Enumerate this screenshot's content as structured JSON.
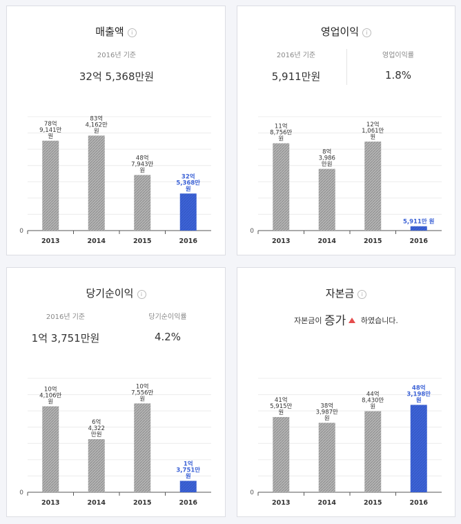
{
  "panels": [
    {
      "title": "매출액",
      "summary": {
        "cols": [
          {
            "caption": "2016년 기준",
            "value": "32억 5,368만원"
          }
        ]
      },
      "chart_data": {
        "type": "bar",
        "categories": [
          "2013",
          "2014",
          "2015",
          "2016"
        ],
        "values": [
          78.91,
          83.42,
          48.79,
          32.54
        ],
        "labels": [
          "78억 9,141만 원",
          "83억 4,162만 원",
          "48억 7,943만 원",
          "32억 5,368만 원"
        ],
        "yaxis_label": "0",
        "ylim": [
          0,
          100
        ],
        "highlight_index": 3
      }
    },
    {
      "title": "영업이익",
      "summary": {
        "cols": [
          {
            "caption": "2016년 기준",
            "value": "5,911만원"
          },
          {
            "caption": "영업이익률",
            "value": "1.8%"
          }
        ]
      },
      "chart_data": {
        "type": "bar",
        "categories": [
          "2013",
          "2014",
          "2015",
          "2016"
        ],
        "values": [
          11.88,
          8.4,
          12.11,
          0.59
        ],
        "labels": [
          "11억 8,756만 원",
          "8억 3,986 만원",
          "12억 1,061만 원",
          "5,911만 원"
        ],
        "yaxis_label": "0",
        "ylim": [
          0,
          15.5
        ],
        "highlight_index": 3
      }
    },
    {
      "title": "당기순이익",
      "summary": {
        "cols": [
          {
            "caption": "2016년 기준",
            "value": "1억 3,751만원"
          },
          {
            "caption": "당기순이익률",
            "value": "4.2%"
          }
        ]
      },
      "chart_data": {
        "type": "bar",
        "categories": [
          "2013",
          "2014",
          "2015",
          "2016"
        ],
        "values": [
          10.41,
          6.43,
          10.76,
          1.38
        ],
        "labels": [
          "10억 4,106만 원",
          "6억 4,322 만원",
          "10억 7,556만 원",
          "1억 3,751만 원"
        ],
        "yaxis_label": "0",
        "ylim": [
          0,
          13.8
        ],
        "highlight_index": 3
      }
    },
    {
      "title": "자본금",
      "summary": {
        "note": {
          "pre": "자본금이",
          "big": "증가",
          "post": "하였습니다."
        }
      },
      "chart_data": {
        "type": "bar",
        "categories": [
          "2013",
          "2014",
          "2015",
          "2016"
        ],
        "values": [
          41.59,
          38.4,
          44.84,
          48.32
        ],
        "labels": [
          "41억 5,915만 원",
          "38억 3,987만 원",
          "44억 8,430만 원",
          "48억 3,198만 원"
        ],
        "yaxis_label": "0",
        "ylim": [
          0,
          63
        ],
        "highlight_index": 3
      }
    }
  ],
  "colors": {
    "bar": "#a8a8a8",
    "highlight": "#3d63d6",
    "grid": "#ececec",
    "axis": "#555555",
    "text": "#333333"
  }
}
